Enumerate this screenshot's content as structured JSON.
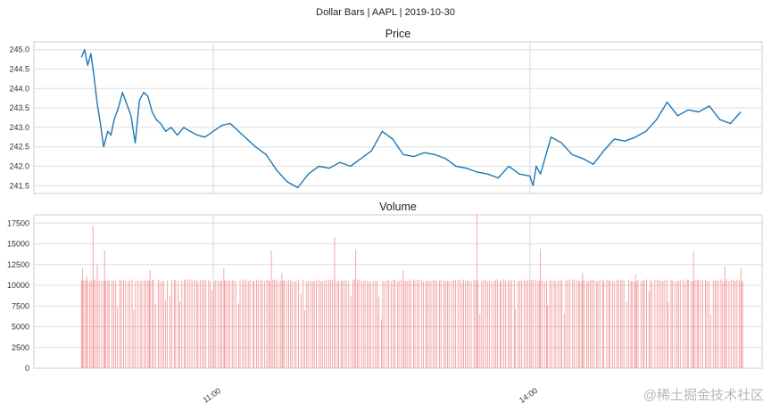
{
  "figure": {
    "suptitle": "Dollar Bars | AAPL | 2019-10-30",
    "watermark": "@稀土掘金技术社区"
  },
  "chart_data": [
    {
      "type": "line",
      "title": "Price",
      "xlabel": "",
      "ylabel": "",
      "ylim": [
        241.3,
        245.2
      ],
      "yticks": [
        "241.5",
        "242.0",
        "242.5",
        "243.0",
        "243.5",
        "244.0",
        "244.5",
        "245.0"
      ],
      "xlim": [
        9.3,
        16.2
      ],
      "xticks": [
        "11:00",
        "14:00"
      ],
      "grid": true,
      "color": "#1f77b4",
      "series": [
        {
          "x": [
            9.75,
            9.78,
            9.81,
            9.84,
            9.87,
            9.9,
            9.93,
            9.96,
            10.0,
            10.03,
            10.06,
            10.1,
            10.14,
            10.18,
            10.22,
            10.26,
            10.3,
            10.34,
            10.38,
            10.42,
            10.46,
            10.5,
            10.55,
            10.6,
            10.66,
            10.72,
            10.78,
            10.85,
            10.92,
            11.0,
            11.08,
            11.16,
            11.24,
            11.32,
            11.4,
            11.5,
            11.6,
            11.7,
            11.8,
            11.9,
            12.0,
            12.1,
            12.2,
            12.3,
            12.4,
            12.5,
            12.6,
            12.7,
            12.8,
            12.9,
            13.0,
            13.1,
            13.2,
            13.3,
            13.4,
            13.5,
            13.6,
            13.7,
            13.8,
            13.9,
            14.0,
            14.03,
            14.06,
            14.1,
            14.2,
            14.3,
            14.4,
            14.5,
            14.6,
            14.7,
            14.8,
            14.9,
            15.0,
            15.1,
            15.2,
            15.3,
            15.4,
            15.5,
            15.6,
            15.7,
            15.8,
            15.9,
            16.0
          ],
          "y": [
            244.8,
            245.0,
            244.6,
            244.9,
            244.3,
            243.6,
            243.1,
            242.5,
            242.9,
            242.8,
            243.2,
            243.5,
            243.9,
            243.6,
            243.3,
            242.6,
            243.7,
            243.9,
            243.8,
            243.4,
            243.2,
            243.1,
            242.9,
            243.0,
            242.8,
            243.0,
            242.9,
            242.8,
            242.75,
            242.9,
            243.05,
            243.1,
            242.9,
            242.7,
            242.5,
            242.3,
            241.9,
            241.6,
            241.45,
            241.8,
            242.0,
            241.95,
            242.1,
            242.0,
            242.2,
            242.4,
            242.9,
            242.7,
            242.3,
            242.25,
            242.35,
            242.3,
            242.2,
            242.0,
            241.95,
            241.85,
            241.8,
            241.7,
            242.0,
            241.8,
            241.75,
            241.5,
            242.0,
            241.8,
            242.75,
            242.6,
            242.3,
            242.2,
            242.05,
            242.4,
            242.7,
            242.65,
            242.75,
            242.9,
            243.2,
            243.65,
            243.3,
            243.45,
            243.4,
            243.55,
            243.2,
            243.1,
            243.4
          ]
        }
      ]
    },
    {
      "type": "bar",
      "title": "Volume",
      "xlabel": "",
      "ylabel": "",
      "ylim": [
        0,
        18500
      ],
      "yticks": [
        "0",
        "2500",
        "5000",
        "7500",
        "10000",
        "12500",
        "15000",
        "17500"
      ],
      "xlim": [
        9.3,
        16.2
      ],
      "xticks": [
        "11:00",
        "14:00"
      ],
      "grid": true,
      "color": "#f08080",
      "series": [
        {
          "name": "",
          "bar_count": 330,
          "typical_value": 10600,
          "spikes": [
            {
              "x": 9.76,
              "value": 12000
            },
            {
              "x": 9.8,
              "value": 11200
            },
            {
              "x": 9.86,
              "value": 17200
            },
            {
              "x": 9.9,
              "value": 12500
            },
            {
              "x": 9.97,
              "value": 14200
            },
            {
              "x": 10.4,
              "value": 11800
            },
            {
              "x": 11.1,
              "value": 12000
            },
            {
              "x": 11.55,
              "value": 14200
            },
            {
              "x": 11.65,
              "value": 11500
            },
            {
              "x": 12.15,
              "value": 15800
            },
            {
              "x": 12.35,
              "value": 14300
            },
            {
              "x": 12.8,
              "value": 11800
            },
            {
              "x": 13.5,
              "value": 18600
            },
            {
              "x": 14.1,
              "value": 14400
            },
            {
              "x": 14.5,
              "value": 11500
            },
            {
              "x": 15.0,
              "value": 11300
            },
            {
              "x": 15.55,
              "value": 14000
            },
            {
              "x": 15.85,
              "value": 12300
            },
            {
              "x": 16.0,
              "value": 12100
            }
          ]
        }
      ]
    }
  ]
}
